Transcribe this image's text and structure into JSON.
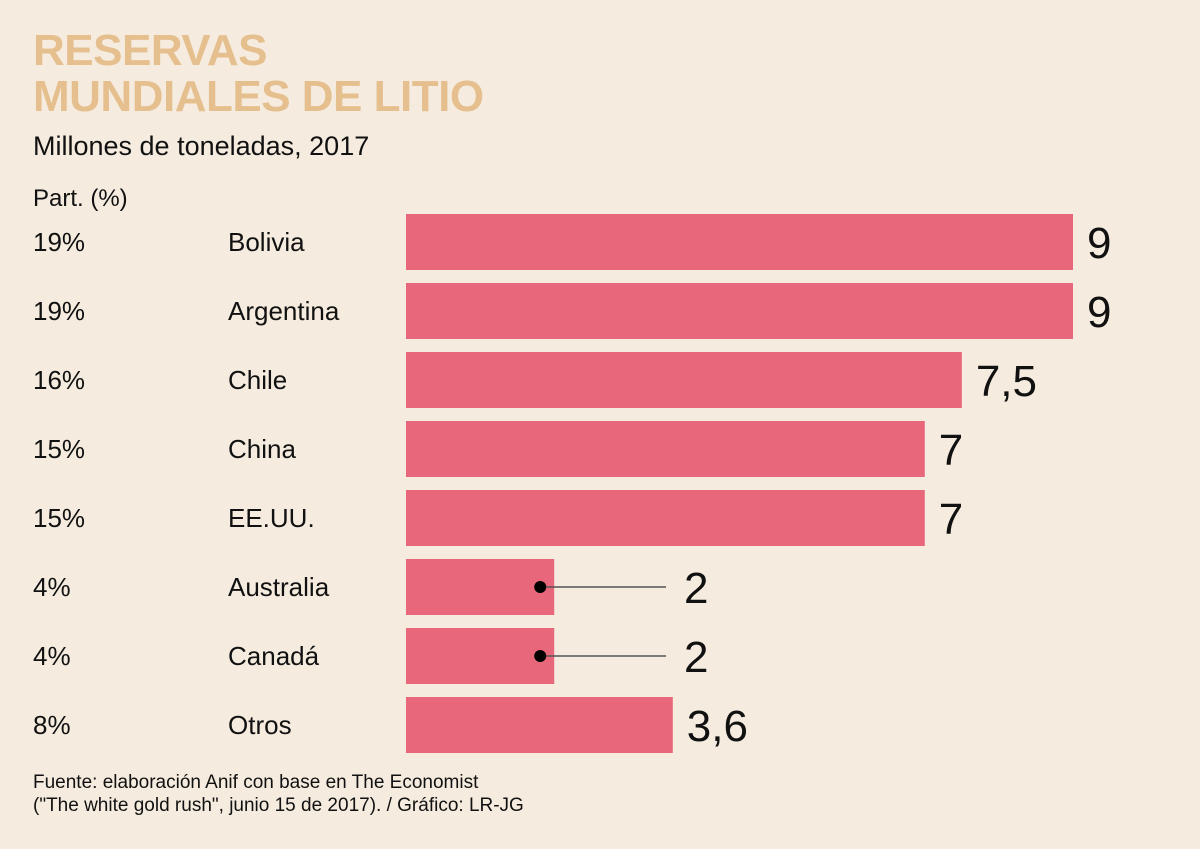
{
  "chart_data": {
    "type": "bar",
    "orientation": "horizontal",
    "title": "RESERVAS MUNDIALES DE LITIO",
    "title_lines": [
      "RESERVAS",
      "MUNDIALES DE LITIO"
    ],
    "subtitle": "Millones de toneladas, 2017",
    "share_header": "Part. (%)",
    "xlabel": "",
    "ylabel": "",
    "xlim": [
      0,
      9
    ],
    "grid": false,
    "legend": "none",
    "bar_color": "#e8677a",
    "categories": [
      "Bolivia",
      "Argentina",
      "Chile",
      "China",
      "EE.UU.",
      "Australia",
      "Canadá",
      "Otros"
    ],
    "values": [
      9,
      9,
      7.5,
      7,
      7,
      2,
      2,
      3.6
    ],
    "value_labels": [
      "9",
      "9",
      "7,5",
      "7",
      "7",
      "2",
      "2",
      "3,6"
    ],
    "shares": [
      "19%",
      "19%",
      "16%",
      "15%",
      "15%",
      "4%",
      "4%",
      "8%"
    ],
    "leader_lines": [
      false,
      false,
      false,
      false,
      false,
      true,
      true,
      false
    ]
  },
  "footer": {
    "line1": "Fuente: elaboración Anif con base en The Economist",
    "line2": "(\"The white gold rush\", junio 15 de 2017). / Gráfico: LR-JG"
  }
}
